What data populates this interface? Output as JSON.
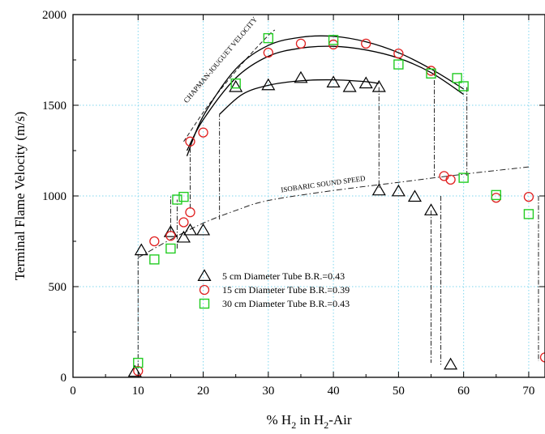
{
  "chart_data": {
    "type": "scatter",
    "xlabel": "% H",
    "xlabel_sub": "2",
    "xlabel_mid": " in H",
    "xlabel_sub2": "2",
    "xlabel_end": "-Air",
    "ylabel": "Terminal Flame Velocity (m/s)",
    "xlim": [
      0,
      72.5
    ],
    "ylim": [
      0,
      2000
    ],
    "xticks": [
      0,
      10,
      20,
      30,
      40,
      50,
      60,
      70
    ],
    "yticks": [
      0,
      500,
      1000,
      1500,
      2000
    ],
    "grid": true,
    "legend_position": "lower-left inside",
    "series": [
      {
        "name": "5 cm Diameter Tube B.R.=0.43",
        "marker": "triangle",
        "color": "#000000",
        "points": [
          [
            9.5,
            30
          ],
          [
            10.5,
            700
          ],
          [
            15,
            800
          ],
          [
            17,
            770
          ],
          [
            18,
            810
          ],
          [
            20,
            810
          ],
          [
            25,
            1600
          ],
          [
            30,
            1610
          ],
          [
            35,
            1650
          ],
          [
            40,
            1625
          ],
          [
            42.5,
            1600
          ],
          [
            45,
            1620
          ],
          [
            47,
            1600
          ],
          [
            47,
            1030
          ],
          [
            50,
            1025
          ],
          [
            52.5,
            995
          ],
          [
            55,
            920
          ],
          [
            58,
            70
          ]
        ]
      },
      {
        "name": "15 cm Diameter Tube B.R.=0.39",
        "marker": "circle",
        "color": "#e02020",
        "points": [
          [
            10,
            35
          ],
          [
            12.5,
            750
          ],
          [
            15,
            780
          ],
          [
            17,
            855
          ],
          [
            18,
            910
          ],
          [
            18,
            1300
          ],
          [
            20,
            1350
          ],
          [
            30,
            1790
          ],
          [
            35,
            1840
          ],
          [
            40,
            1835
          ],
          [
            45,
            1840
          ],
          [
            50,
            1785
          ],
          [
            55,
            1690
          ],
          [
            57,
            1110
          ],
          [
            58,
            1090
          ],
          [
            65,
            990
          ],
          [
            70,
            995
          ],
          [
            72.5,
            110
          ]
        ]
      },
      {
        "name": "30 cm Diameter Tube B.R.=0.43",
        "marker": "square",
        "color": "#22cc22",
        "points": [
          [
            10,
            80
          ],
          [
            12.5,
            650
          ],
          [
            15,
            710
          ],
          [
            16,
            980
          ],
          [
            17,
            995
          ],
          [
            25,
            1620
          ],
          [
            30,
            1870
          ],
          [
            40,
            1860
          ],
          [
            50,
            1725
          ],
          [
            55,
            1675
          ],
          [
            59,
            1650
          ],
          [
            60,
            1605
          ],
          [
            60,
            1100
          ],
          [
            65,
            1005
          ],
          [
            70,
            900
          ]
        ]
      }
    ],
    "annotations": [
      {
        "text": "CHAPMAN-JOUGUET VELOCITY",
        "x": 17.5,
        "y": 1510,
        "angle": -50
      },
      {
        "text": "ISOBARIC SOUND SPEED",
        "x": 32,
        "y": 1020,
        "angle": -8
      }
    ],
    "curves": {
      "cj_velocity": [
        [
          17,
          1300
        ],
        [
          21,
          1510
        ],
        [
          26,
          1730
        ],
        [
          30,
          1885
        ],
        [
          31,
          1915
        ]
      ],
      "sound_speed": [
        [
          10,
          660
        ],
        [
          15,
          760
        ],
        [
          20,
          850
        ],
        [
          25,
          920
        ],
        [
          30,
          975
        ],
        [
          40,
          1030
        ],
        [
          50,
          1075
        ],
        [
          60,
          1120
        ],
        [
          70,
          1160
        ]
      ],
      "fit_5cm": [
        [
          22.5,
          1450
        ],
        [
          26,
          1560
        ],
        [
          30,
          1610
        ],
        [
          35,
          1635
        ],
        [
          40,
          1640
        ],
        [
          45,
          1630
        ],
        [
          47,
          1620
        ]
      ],
      "fit_15cm": [
        [
          17.5,
          1250
        ],
        [
          20,
          1420
        ],
        [
          25,
          1650
        ],
        [
          30,
          1770
        ],
        [
          35,
          1815
        ],
        [
          40,
          1825
        ],
        [
          45,
          1805
        ],
        [
          50,
          1760
        ],
        [
          55,
          1680
        ],
        [
          60,
          1560
        ]
      ],
      "fit_30cm": [
        [
          17.5,
          1220
        ],
        [
          20,
          1440
        ],
        [
          25,
          1700
        ],
        [
          30,
          1830
        ],
        [
          35,
          1875
        ],
        [
          40,
          1880
        ],
        [
          45,
          1850
        ],
        [
          50,
          1790
        ],
        [
          55,
          1700
        ],
        [
          60,
          1590
        ]
      ],
      "transitions_5cm": [
        [
          [
            10,
            50
          ],
          [
            10,
            680
          ]
        ],
        [
          [
            15,
            800
          ],
          [
            15,
            1000
          ]
        ],
        [
          [
            22.5,
            870
          ],
          [
            22.5,
            1450
          ]
        ],
        [
          [
            47,
            1600
          ],
          [
            47,
            1040
          ]
        ],
        [
          [
            55,
            920
          ],
          [
            55,
            80
          ]
        ]
      ],
      "transitions_15cm": [
        [
          [
            18,
            930
          ],
          [
            18,
            1280
          ]
        ],
        [
          [
            55.5,
            1690
          ],
          [
            55.5,
            1110
          ]
        ],
        [
          [
            71.5,
            1000
          ],
          [
            71.5,
            90
          ]
        ]
      ],
      "transitions_30cm": [
        [
          [
            16,
            710
          ],
          [
            16,
            980
          ]
        ],
        [
          [
            60.5,
            1600
          ],
          [
            60.5,
            1110
          ]
        ],
        [
          [
            56.5,
            1000
          ],
          [
            56.5,
            70
          ]
        ]
      ]
    }
  }
}
